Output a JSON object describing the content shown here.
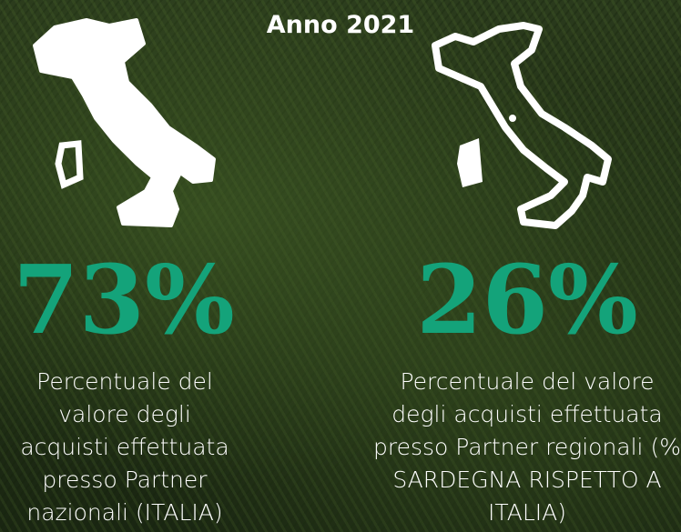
{
  "header": {
    "title": "Anno 2021"
  },
  "stats": [
    {
      "value": "73%",
      "description": "Percentuale del valore degli acquisti effettuata presso Partner nazionali (ITALIA)"
    },
    {
      "value": "26%",
      "description": "Percentuale del valore degli acquisti effettuata presso Partner regionali (% SARDEGNA RISPETTO A ITALIA)"
    }
  ]
}
